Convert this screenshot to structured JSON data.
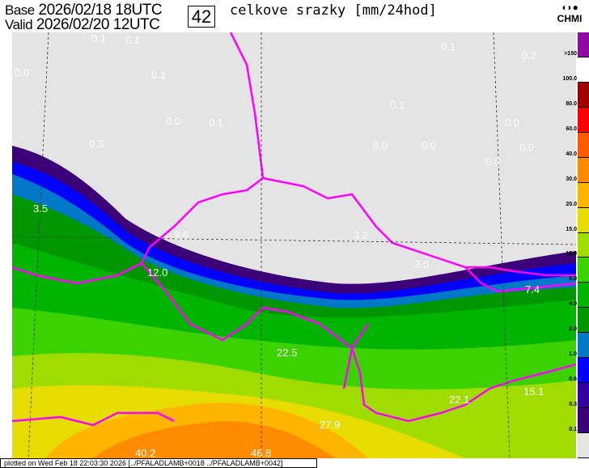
{
  "header": {
    "base_label": "Base",
    "base_value": "2026/02/18 18UTC",
    "valid_label": "Valid",
    "valid_value": "2026/02/20 12UTC",
    "forecast_hour": "42",
    "title": "celkove srazky [mm/24hod]",
    "logo_text": "CHMI"
  },
  "legend": {
    "items": [
      {
        "label": ">150",
        "color": "#8c0ca0"
      },
      {
        "label": "100.0",
        "color": "#ffffff"
      },
      {
        "label": "80.0",
        "color": "#a00000"
      },
      {
        "label": "60.0",
        "color": "#ff0000"
      },
      {
        "label": "40.0",
        "color": "#ff5a00"
      },
      {
        "label": "30.0",
        "color": "#ff8c00"
      },
      {
        "label": "20.0",
        "color": "#ffb400"
      },
      {
        "label": "15.0",
        "color": "#e6dc00"
      },
      {
        "label": "10.0",
        "color": "#a0dc00"
      },
      {
        "label": "6.0",
        "color": "#3cd200"
      },
      {
        "label": "4.0",
        "color": "#00b400"
      },
      {
        "label": "2.0",
        "color": "#009600"
      },
      {
        "label": "1.0",
        "color": "#0078c8"
      },
      {
        "label": "0.6",
        "color": "#0000ff"
      },
      {
        "label": "0.3",
        "color": "#3200a0"
      },
      {
        "label": "0.1",
        "color": "#3c0078"
      },
      {
        "label": "",
        "color": "#e4e4e4"
      }
    ]
  },
  "map_labels": [
    {
      "text": "0.1"
    },
    {
      "text": "0.1"
    },
    {
      "text": "0.0"
    },
    {
      "text": "0.1"
    },
    {
      "text": "0.0"
    },
    {
      "text": "0.1"
    },
    {
      "text": "0.3"
    },
    {
      "text": "0.1"
    },
    {
      "text": "0.0"
    },
    {
      "text": "0.0"
    },
    {
      "text": "0.0"
    },
    {
      "text": "0.0"
    },
    {
      "text": "0.0"
    },
    {
      "text": "0.2"
    },
    {
      "text": "0.1"
    },
    {
      "text": "3.5"
    },
    {
      "text": "3.6"
    },
    {
      "text": "3.2"
    },
    {
      "text": "3.0"
    },
    {
      "text": "7.4"
    },
    {
      "text": "12.0"
    },
    {
      "text": "22.5"
    },
    {
      "text": "22.1"
    },
    {
      "text": "15.1"
    },
    {
      "text": "27.9"
    },
    {
      "text": "40.2"
    },
    {
      "text": "46.8"
    }
  ],
  "footer": {
    "text": "plotted on Wed Feb 18 22:03:30 2026 [../PFALADLAMB+0018 ../PFALADLAMB+0042]"
  },
  "colors": {
    "border": "#ff00ff",
    "background": "#e4e4e4"
  }
}
